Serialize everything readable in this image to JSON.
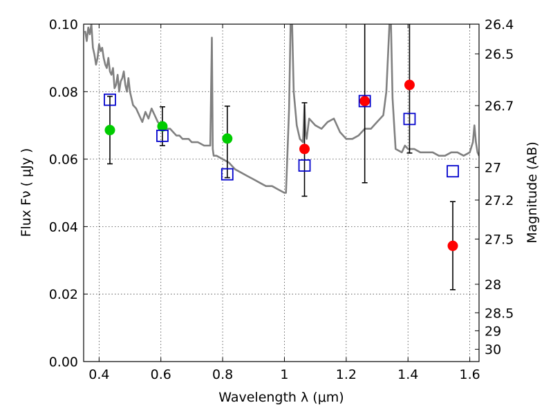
{
  "chart_data": {
    "type": "scatter",
    "xlabel": "Wavelength  λ (μm)",
    "ylabel": "Flux  Fν ( μJy )",
    "y2label": "Magnitude (AB)",
    "xlim": [
      0.35,
      1.63
    ],
    "ylim": [
      0.0,
      0.1
    ],
    "grid": true,
    "x_ticks": [
      0.4,
      0.6,
      0.8,
      1.0,
      1.2,
      1.4,
      1.6
    ],
    "x_tick_labels": [
      "0.4",
      "0.6",
      "0.8",
      "1",
      "1.2",
      "1.4",
      "1.6"
    ],
    "y_ticks": [
      0.0,
      0.02,
      0.04,
      0.06,
      0.08,
      0.1
    ],
    "y_tick_labels": [
      "0.00",
      "0.02",
      "0.04",
      "0.06",
      "0.08",
      "0.10"
    ],
    "y2_ticks": [
      26.4,
      26.5,
      26.7,
      27,
      27.2,
      27.5,
      28,
      28.5,
      29,
      30
    ],
    "y2_tick_labels": [
      "26.4",
      "26.5",
      "26.7",
      "27",
      "27.2",
      "27.5",
      "28",
      "28.5",
      "29",
      "30"
    ],
    "colors": {
      "template": "#808080",
      "green_points": "#00cc00",
      "red_points": "#ff0000",
      "model_squares": "#0000cc",
      "errorbar": "#000000"
    },
    "series": [
      {
        "kind": "template_spectrum",
        "x": [
          0.355,
          0.36,
          0.365,
          0.37,
          0.375,
          0.38,
          0.385,
          0.39,
          0.395,
          0.4,
          0.405,
          0.41,
          0.415,
          0.42,
          0.425,
          0.43,
          0.435,
          0.44,
          0.445,
          0.45,
          0.455,
          0.46,
          0.465,
          0.47,
          0.475,
          0.48,
          0.485,
          0.49,
          0.495,
          0.5,
          0.51,
          0.52,
          0.53,
          0.54,
          0.55,
          0.56,
          0.57,
          0.58,
          0.59,
          0.6,
          0.61,
          0.62,
          0.63,
          0.64,
          0.65,
          0.66,
          0.67,
          0.68,
          0.69,
          0.7,
          0.72,
          0.74,
          0.76,
          0.765,
          0.768,
          0.771,
          0.78,
          0.8,
          0.82,
          0.84,
          0.86,
          0.88,
          0.9,
          0.92,
          0.94,
          0.96,
          0.98,
          1.0,
          1.005,
          1.01,
          1.015,
          1.02,
          1.025,
          1.03,
          1.04,
          1.05,
          1.06,
          1.065,
          1.068,
          1.072,
          1.08,
          1.1,
          1.12,
          1.14,
          1.16,
          1.18,
          1.2,
          1.22,
          1.24,
          1.26,
          1.28,
          1.3,
          1.32,
          1.33,
          1.34,
          1.345,
          1.35,
          1.36,
          1.38,
          1.39,
          1.4,
          1.42,
          1.44,
          1.46,
          1.48,
          1.5,
          1.52,
          1.54,
          1.56,
          1.58,
          1.6,
          1.61,
          1.615,
          1.62,
          1.625,
          1.63
        ],
        "y": [
          0.098,
          0.095,
          0.099,
          0.097,
          0.1,
          0.093,
          0.091,
          0.088,
          0.09,
          0.094,
          0.092,
          0.093,
          0.09,
          0.088,
          0.087,
          0.09,
          0.086,
          0.085,
          0.087,
          0.081,
          0.082,
          0.085,
          0.08,
          0.083,
          0.084,
          0.086,
          0.082,
          0.08,
          0.084,
          0.08,
          0.076,
          0.075,
          0.073,
          0.071,
          0.074,
          0.072,
          0.075,
          0.073,
          0.071,
          0.07,
          0.07,
          0.069,
          0.069,
          0.068,
          0.067,
          0.067,
          0.066,
          0.066,
          0.066,
          0.065,
          0.065,
          0.064,
          0.064,
          0.096,
          0.063,
          0.061,
          0.061,
          0.06,
          0.059,
          0.057,
          0.056,
          0.055,
          0.054,
          0.053,
          0.052,
          0.052,
          0.051,
          0.05,
          0.05,
          0.062,
          0.075,
          0.1,
          0.1,
          0.08,
          0.07,
          0.066,
          0.065,
          0.076,
          0.068,
          0.066,
          0.072,
          0.07,
          0.069,
          0.071,
          0.072,
          0.068,
          0.066,
          0.066,
          0.067,
          0.069,
          0.069,
          0.071,
          0.073,
          0.08,
          0.1,
          0.1,
          0.078,
          0.063,
          0.062,
          0.064,
          0.063,
          0.063,
          0.062,
          0.062,
          0.062,
          0.061,
          0.061,
          0.062,
          0.062,
          0.061,
          0.062,
          0.065,
          0.07,
          0.065,
          0.062,
          0.061
        ]
      },
      {
        "kind": "observed_green",
        "x": [
          0.435,
          0.605,
          0.815
        ],
        "y": [
          0.0686,
          0.0697,
          0.0661
        ],
        "yerr_low": [
          0.0586,
          0.064,
          0.0545
        ],
        "yerr_high": [
          0.0786,
          0.0755,
          0.0757
        ]
      },
      {
        "kind": "observed_red",
        "x": [
          1.065,
          1.26,
          1.405,
          1.545
        ],
        "y": [
          0.063,
          0.0772,
          0.082,
          0.0343
        ],
        "yerr_low": [
          0.049,
          0.053,
          0.0618,
          0.0213
        ],
        "yerr_high": [
          0.0767,
          0.1,
          0.1,
          0.0474
        ]
      },
      {
        "kind": "model_squares",
        "x": [
          0.435,
          0.605,
          0.815,
          1.065,
          1.26,
          1.405,
          1.545
        ],
        "y": [
          0.0776,
          0.0669,
          0.0555,
          0.0581,
          0.0772,
          0.0719,
          0.0564
        ]
      }
    ]
  }
}
